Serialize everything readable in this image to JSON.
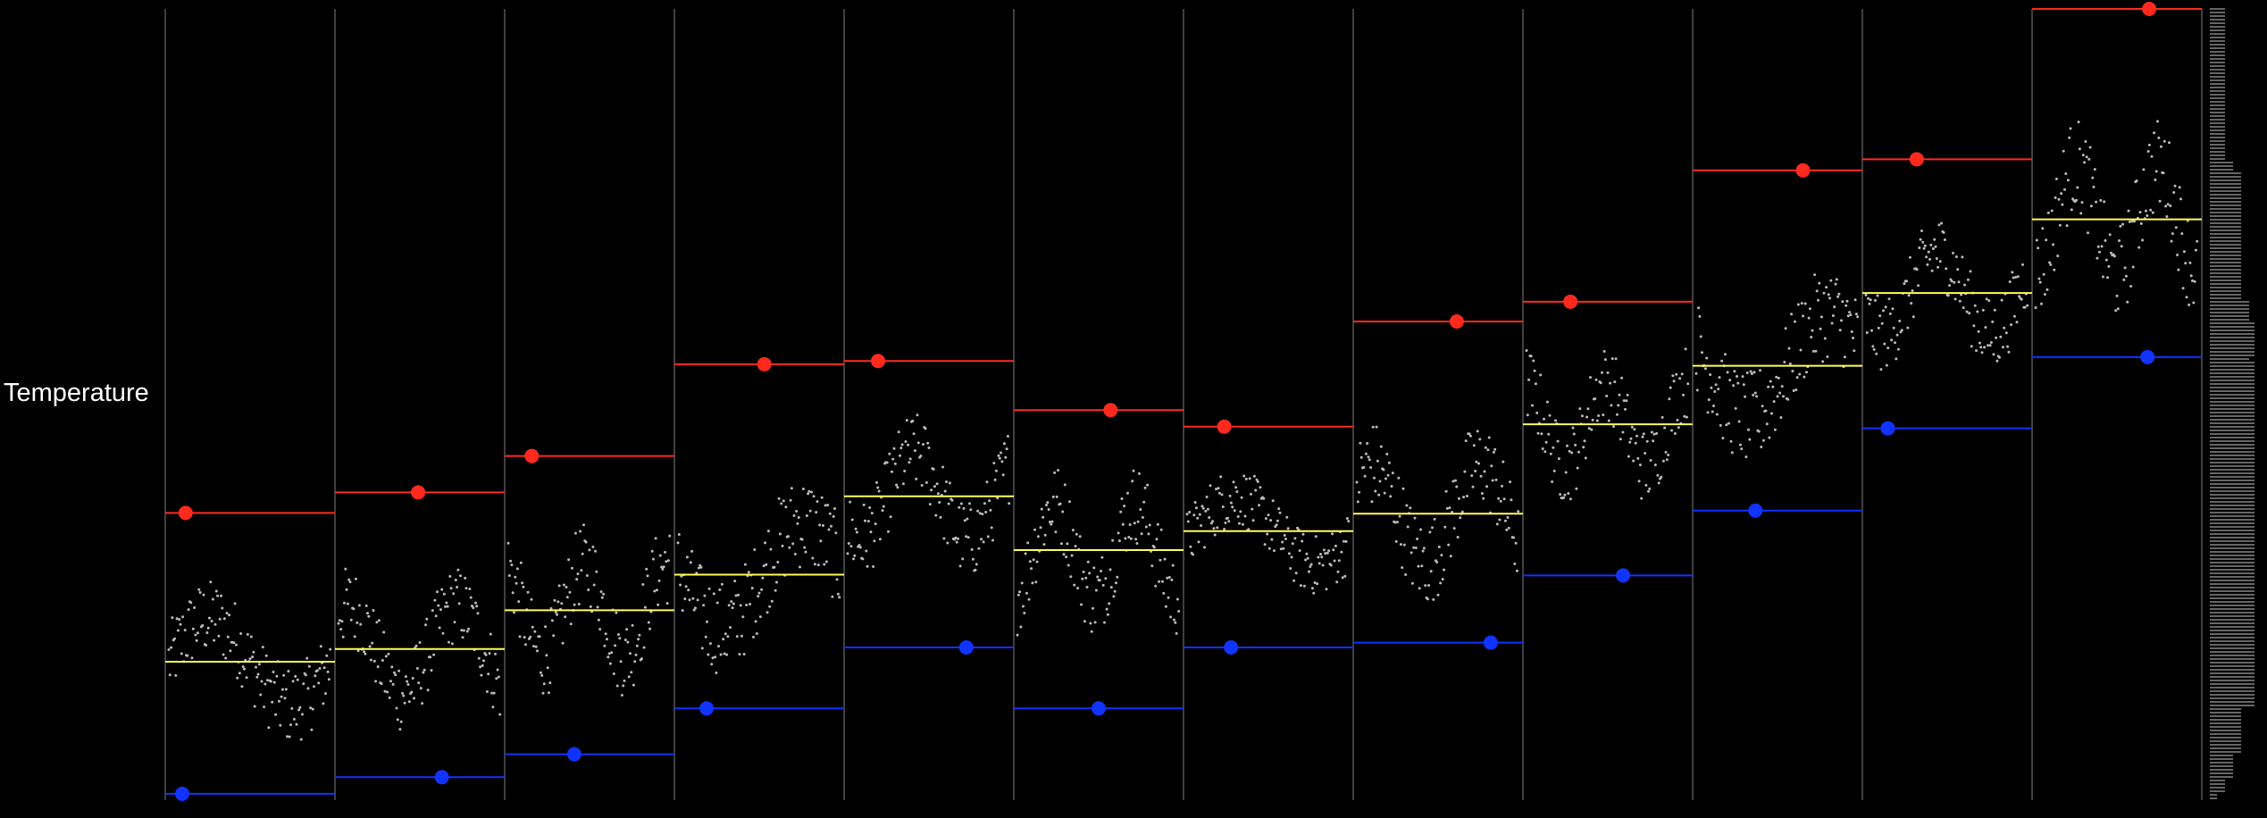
{
  "chart_data": {
    "type": "scatter",
    "title": "",
    "xlabel": "",
    "ylabel": "Temperature",
    "ylim": [
      0,
      100
    ],
    "grid": false,
    "legend": "none",
    "panels": [
      {
        "mean": 17.5,
        "max": 36.3,
        "min": 0.8
      },
      {
        "mean": 19.1,
        "max": 38.9,
        "min": 2.9
      },
      {
        "mean": 24.0,
        "max": 43.5,
        "min": 5.8
      },
      {
        "mean": 28.5,
        "max": 55.1,
        "min": 11.6
      },
      {
        "mean": 38.4,
        "max": 55.5,
        "min": 19.3
      },
      {
        "mean": 31.6,
        "max": 49.3,
        "min": 11.6
      },
      {
        "mean": 34.0,
        "max": 47.2,
        "min": 19.3
      },
      {
        "mean": 36.2,
        "max": 60.5,
        "min": 19.9
      },
      {
        "mean": 47.5,
        "max": 63.0,
        "min": 28.4
      },
      {
        "mean": 54.9,
        "max": 79.6,
        "min": 36.6
      },
      {
        "mean": 64.1,
        "max": 81.0,
        "min": 47.0
      },
      {
        "mean": 73.4,
        "max": 100.0,
        "min": 56.0
      }
    ],
    "colors": {
      "max": "#ff2a1e",
      "mean": "#ffff55",
      "min": "#1133ff",
      "points": "#bbbbbb",
      "divider": "#555555",
      "background": "#000000"
    }
  }
}
